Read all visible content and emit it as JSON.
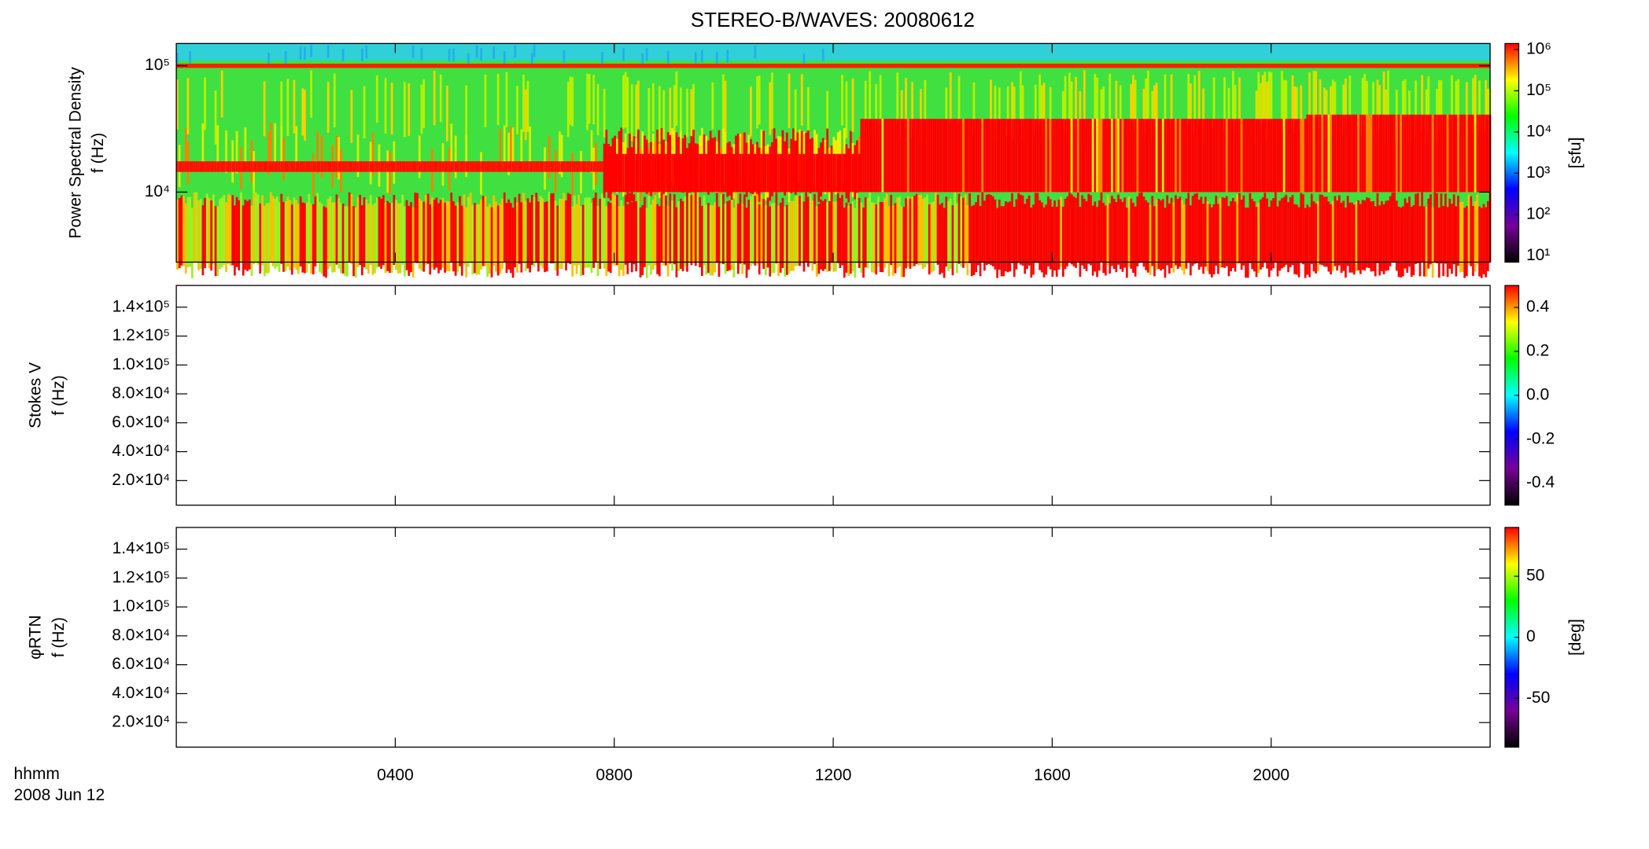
{
  "chart_data": [
    {
      "type": "spectrogram",
      "title": "STEREO-B/WAVES: 20080612",
      "ylabel": [
        "Power Spectral Density",
        "f (Hz)"
      ],
      "yscale": "log",
      "ylim": [
        2790,
        150000
      ],
      "yticks": [
        {
          "value": 10000,
          "label": "10⁴"
        },
        {
          "value": 100000,
          "label": "10⁵"
        }
      ],
      "colorbar": {
        "label": "[sfu]",
        "scale": "log",
        "lim": [
          7,
          1400000
        ],
        "ticks": [
          {
            "value": 10,
            "label": "10¹"
          },
          {
            "value": 100,
            "label": "10²"
          },
          {
            "value": 1000,
            "label": "10³"
          },
          {
            "value": 10000,
            "label": "10⁴"
          },
          {
            "value": 100000,
            "label": "10⁵"
          },
          {
            "value": 1000000,
            "label": "10⁶"
          }
        ]
      },
      "colormap": [
        "#000000",
        "#780096",
        "#0000ff",
        "#00ffff",
        "#00ff00",
        "#ffff00",
        "#ff0000"
      ]
    },
    {
      "type": "spectrogram",
      "ylabel": [
        "Stokes V",
        "f (Hz)"
      ],
      "yscale": "linear",
      "ylim": [
        3000,
        155000
      ],
      "yticks": [
        {
          "value": 20000,
          "label": "2.0×10⁴"
        },
        {
          "value": 40000,
          "label": "4.0×10⁴"
        },
        {
          "value": 60000,
          "label": "6.0×10⁴"
        },
        {
          "value": 80000,
          "label": "8.0×10⁴"
        },
        {
          "value": 100000,
          "label": "1.0×10⁵"
        },
        {
          "value": 120000,
          "label": "1.2×10⁵"
        },
        {
          "value": 140000,
          "label": "1.4×10⁵"
        }
      ],
      "colorbar": {
        "scale": "linear",
        "lim": [
          -0.5,
          0.5
        ],
        "ticks": [
          -0.4,
          -0.2,
          {
            "value": 0,
            "label": "0.0"
          },
          0.2,
          0.4
        ]
      },
      "colormap": [
        "#000000",
        "#780096",
        "#0000ff",
        "#00ffff",
        "#00ff00",
        "#ffff00",
        "#ff0000"
      ]
    },
    {
      "type": "spectrogram",
      "ylabel": [
        "φRTN",
        "f (Hz)"
      ],
      "yscale": "linear",
      "ylim": [
        3000,
        155000
      ],
      "yticks": [
        {
          "value": 20000,
          "label": "2.0×10⁴"
        },
        {
          "value": 40000,
          "label": "4.0×10⁴"
        },
        {
          "value": 60000,
          "label": "6.0×10⁴"
        },
        {
          "value": 80000,
          "label": "8.0×10⁴"
        },
        {
          "value": 100000,
          "label": "1.0×10⁵"
        },
        {
          "value": 120000,
          "label": "1.2×10⁵"
        },
        {
          "value": 140000,
          "label": "1.4×10⁵"
        }
      ],
      "colorbar": {
        "label": "[deg]",
        "scale": "linear",
        "lim": [
          -90,
          90
        ],
        "ticks": [
          -50,
          0,
          50
        ]
      },
      "colormap": [
        "#000000",
        "#780096",
        "#0000ff",
        "#00ffff",
        "#00ff00",
        "#ffff00",
        "#ff0000"
      ],
      "xlim": [
        0,
        24
      ],
      "xticks": [
        {
          "value": 4,
          "label": "0400"
        },
        {
          "value": 8,
          "label": "0800"
        },
        {
          "value": 12,
          "label": "1200"
        },
        {
          "value": 16,
          "label": "1600"
        },
        {
          "value": 20,
          "label": "2000"
        }
      ],
      "xlabel": [
        "hhmm",
        "2008 Jun 12"
      ]
    }
  ]
}
